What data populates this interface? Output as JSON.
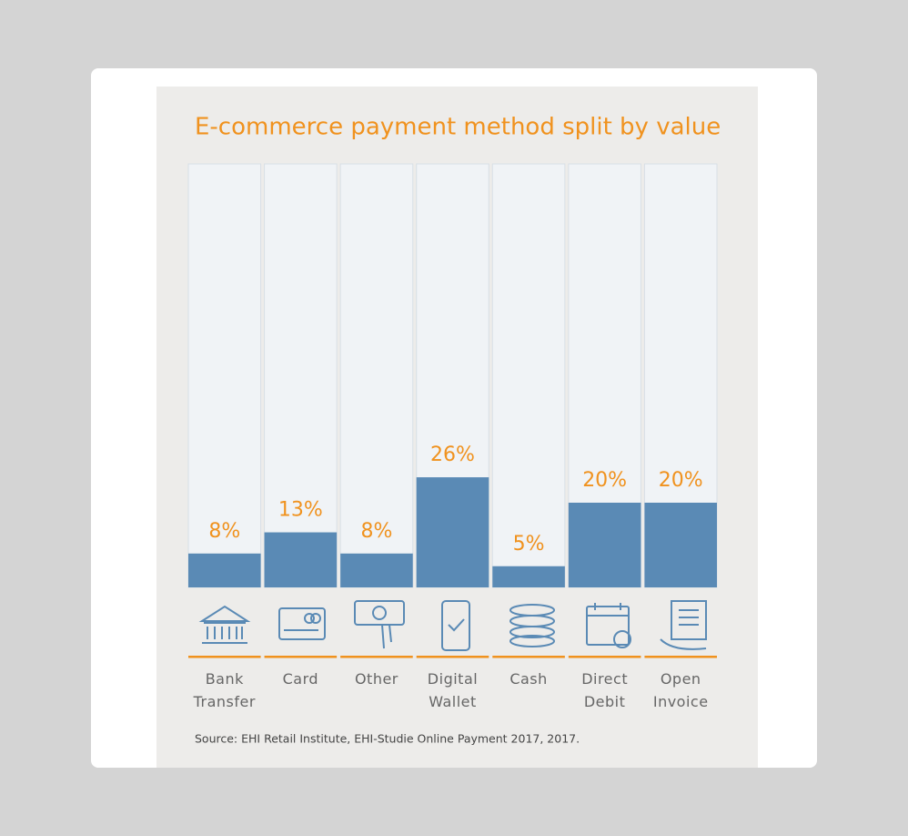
{
  "chart_data": {
    "type": "bar",
    "title": "E-commerce payment method split by value",
    "categories": [
      "Bank Transfer",
      "Card",
      "Other",
      "Digital Wallet",
      "Cash",
      "Direct Debit",
      "Open Invoice"
    ],
    "values": [
      8,
      13,
      8,
      26,
      5,
      20,
      20
    ],
    "value_labels": [
      "8%",
      "13%",
      "8%",
      "26%",
      "5%",
      "20%",
      "20%"
    ],
    "color": "#5a8ab5",
    "ylim": [
      0,
      100
    ],
    "source": "Source: EHI Retail Institute, EHI-Studie Online Payment 2017, 2017."
  }
}
